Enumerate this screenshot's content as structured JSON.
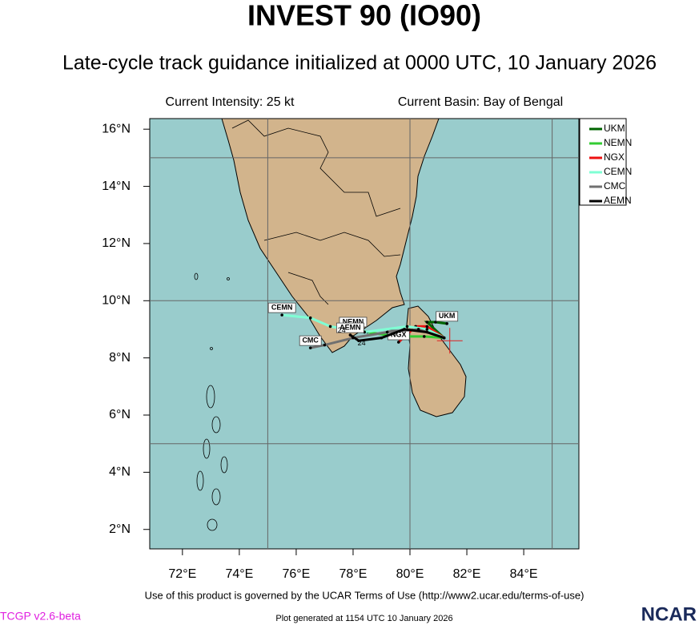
{
  "chart_data": {
    "type": "track-map",
    "title": "INVEST 90 (IO90)",
    "subtitle": "Late-cycle track guidance initialized at 0000 UTC, 10 January 2026",
    "intensity": "Current Intensity: 25 kt",
    "basin": "Current Basin: Bay of Bengal",
    "xlim": [
      70.85,
      85.94
    ],
    "ylim": [
      1.32,
      16.37
    ],
    "xticks": [
      {
        "value": 72,
        "label": "72°E"
      },
      {
        "value": 74,
        "label": "74°E"
      },
      {
        "value": 76,
        "label": "76°E"
      },
      {
        "value": 78,
        "label": "78°E"
      },
      {
        "value": 80,
        "label": "80°E"
      },
      {
        "value": 82,
        "label": "82°E"
      },
      {
        "value": 84,
        "label": "84°E"
      }
    ],
    "yticks": [
      {
        "value": 2,
        "label": "2°N"
      },
      {
        "value": 4,
        "label": "4°N"
      },
      {
        "value": 6,
        "label": "6°N"
      },
      {
        "value": 8,
        "label": "8°N"
      },
      {
        "value": 10,
        "label": "10°N"
      },
      {
        "value": 12,
        "label": "12°N"
      },
      {
        "value": 14,
        "label": "14°N"
      },
      {
        "value": 16,
        "label": "16°N"
      }
    ],
    "grid_lons": [
      75,
      80,
      85
    ],
    "grid_lats": [
      5,
      10,
      15
    ],
    "current_position": {
      "lon": 81.4,
      "lat": 8.6
    },
    "series": [
      {
        "name": "UKM",
        "color": "#006400",
        "lon": [
          81.2,
          80.6,
          80.9,
          81.3
        ],
        "lat": [
          8.7,
          9.25,
          9.25,
          9.2
        ]
      },
      {
        "name": "NEMN",
        "color": "#33cc33",
        "lon": [
          81.2,
          80.5,
          79.5,
          78.5,
          78.0
        ],
        "lat": [
          8.7,
          8.75,
          8.75,
          8.9,
          9.0
        ]
      },
      {
        "name": "NGX",
        "color": "#ee1111",
        "lon": [
          81.2,
          80.6,
          80.2,
          79.6
        ],
        "lat": [
          8.7,
          9.1,
          9.1,
          8.55
        ]
      },
      {
        "name": "CEMN",
        "color": "#7fffd4",
        "lon": [
          81.2,
          80.6,
          79.9,
          78.4,
          77.2,
          76.5,
          75.5
        ],
        "lat": [
          8.7,
          9.0,
          9.1,
          8.9,
          9.1,
          9.4,
          9.5
        ]
      },
      {
        "name": "CMC",
        "color": "#707070",
        "lon": [
          81.2,
          80.3,
          79.2,
          78.0,
          77.0,
          76.5
        ],
        "lat": [
          8.7,
          9.0,
          8.9,
          8.7,
          8.45,
          8.35
        ]
      },
      {
        "name": "AEMN",
        "color": "#000000",
        "lon": [
          81.2,
          80.6,
          79.8,
          79.0,
          78.2,
          77.9
        ],
        "lat": [
          8.7,
          8.9,
          9.0,
          8.7,
          8.6,
          8.8
        ]
      }
    ],
    "annotations": [
      {
        "text": "24",
        "lon": 77.6,
        "lat": 8.95
      },
      {
        "text": "24",
        "lon": 78.3,
        "lat": 8.5
      }
    ],
    "terms": "Use of this product is governed by the UCAR Terms of Use (http://www2.ucar.edu/terms-of-use)",
    "version": "TCGP v2.6-beta",
    "generated": "Plot generated at 1154 UTC  10 January 2026",
    "logo": "NCAR"
  }
}
